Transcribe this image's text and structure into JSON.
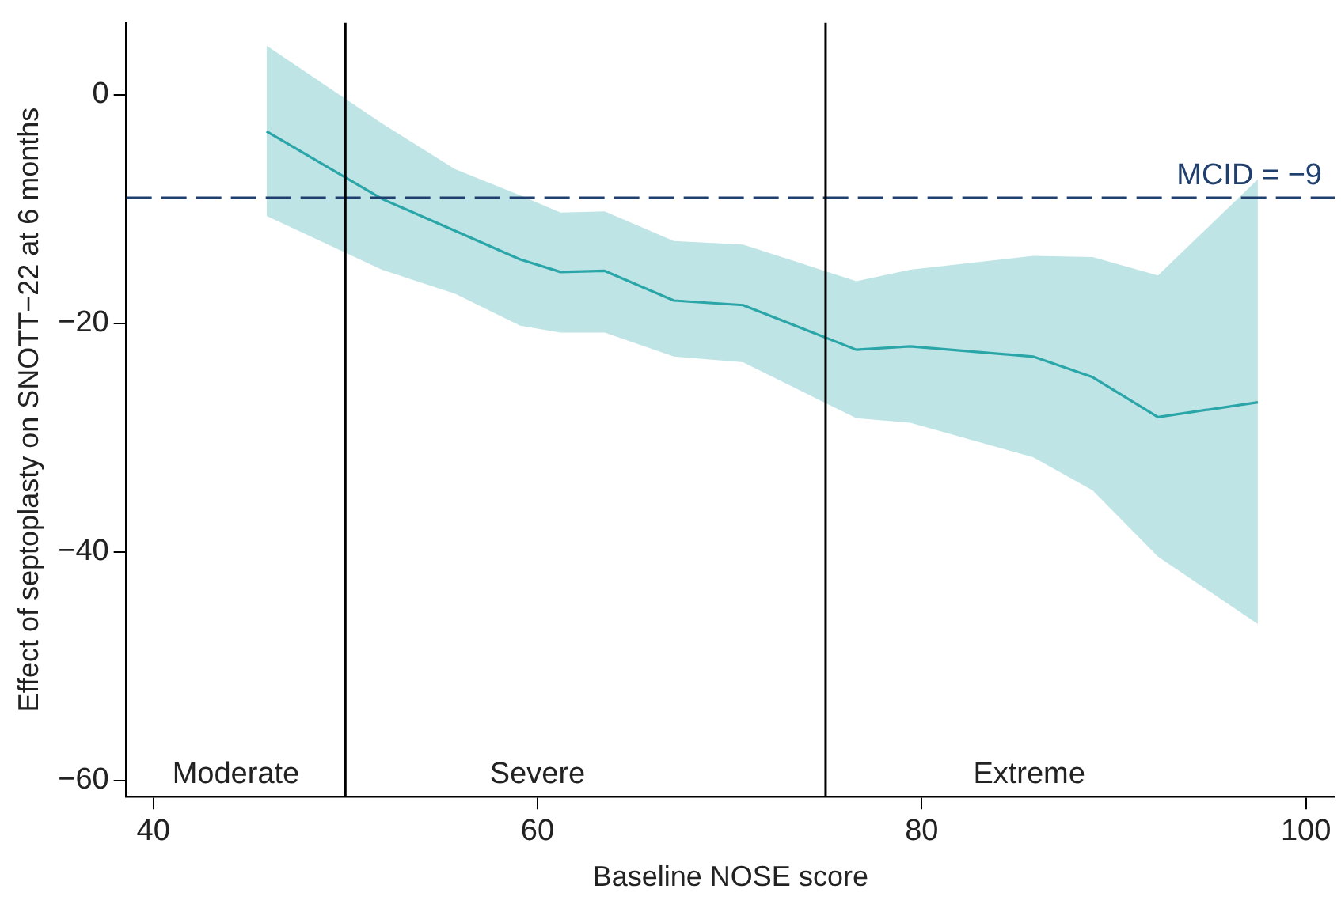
{
  "chart_data": {
    "type": "line",
    "xlabel": "Baseline NOSE score",
    "ylabel": "Effect of septoplasty on SNOTT−22 at 6 months",
    "xlim": [
      38.6,
      101.5
    ],
    "xticks": [
      40,
      60,
      80,
      100
    ],
    "ylim": [
      -61.4,
      6.3
    ],
    "yticks": [
      0,
      -20,
      -40,
      -60
    ],
    "grid": false,
    "legend": false,
    "marker": "none",
    "line_style": "solid",
    "series": [
      {
        "color": "#2aa7a8",
        "x": [
          45.9,
          51.9,
          55.7,
          59.1,
          61.2,
          63.5,
          67.1,
          70.7,
          76.6,
          79.4,
          85.8,
          88.9,
          92.3,
          97.5
        ],
        "values": [
          -3.2,
          -9.1,
          -11.9,
          -14.4,
          -15.5,
          -15.4,
          -18.0,
          -18.4,
          -22.3,
          -22.0,
          -22.9,
          -24.7,
          -28.2,
          -26.9
        ],
        "lower": [
          -10.6,
          -15.3,
          -17.4,
          -20.2,
          -20.8,
          -20.8,
          -22.9,
          -23.4,
          -28.3,
          -28.7,
          -31.7,
          -34.6,
          -40.4,
          -46.3
        ],
        "upper": [
          4.3,
          -2.5,
          -6.5,
          -8.8,
          -10.3,
          -10.2,
          -12.8,
          -13.1,
          -16.3,
          -15.3,
          -14.1,
          -14.2,
          -15.8,
          -7.4
        ]
      }
    ],
    "ref_lines": [
      {
        "axis": "y",
        "value": -9,
        "label": "MCID = −9",
        "color": "#1f3f6e",
        "line_style": "dashed"
      },
      {
        "axis": "x",
        "value": 50,
        "color": "#000000",
        "line_style": "solid"
      },
      {
        "axis": "x",
        "value": 75,
        "color": "#000000",
        "line_style": "solid"
      }
    ],
    "annotations": [
      "Moderate",
      "Severe",
      "Extreme"
    ]
  }
}
